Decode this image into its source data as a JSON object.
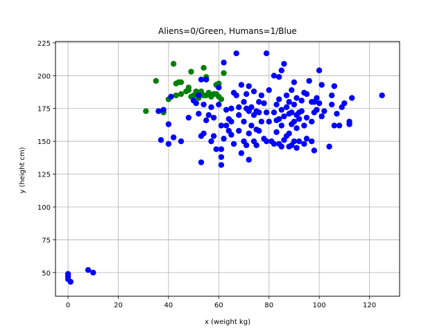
{
  "chart_data": {
    "type": "scatter",
    "title": "Aliens=0/Green, Humans=1/Blue",
    "xlabel": "x (weight kg)",
    "ylabel": "y (height cm)",
    "xlim": [
      -5,
      132
    ],
    "ylim": [
      32,
      226
    ],
    "x_ticks": [
      0,
      20,
      40,
      60,
      80,
      100,
      120
    ],
    "y_ticks": [
      50,
      75,
      100,
      125,
      150,
      175,
      200,
      225
    ],
    "grid": true,
    "legend": "none",
    "colors": {
      "Green": "#008000",
      "Blue": "#0000ff"
    },
    "series": [
      {
        "color": "#008000",
        "points": [
          [
            31,
            173
          ],
          [
            35,
            196
          ],
          [
            38,
            172
          ],
          [
            40,
            182
          ],
          [
            42,
            209
          ],
          [
            43,
            185
          ],
          [
            43,
            194
          ],
          [
            44,
            195
          ],
          [
            45,
            186
          ],
          [
            45,
            195
          ],
          [
            47,
            188
          ],
          [
            48,
            189
          ],
          [
            48,
            191
          ],
          [
            49,
            184
          ],
          [
            49,
            203
          ],
          [
            50,
            185
          ],
          [
            51,
            186
          ],
          [
            51,
            188
          ],
          [
            52,
            183
          ],
          [
            53,
            186
          ],
          [
            53,
            188
          ],
          [
            54,
            185
          ],
          [
            54,
            206
          ],
          [
            55,
            185
          ],
          [
            55,
            199
          ],
          [
            56,
            187
          ],
          [
            57,
            184
          ],
          [
            58,
            186
          ],
          [
            59,
            186
          ],
          [
            59,
            193
          ],
          [
            60,
            194
          ],
          [
            60,
            184
          ],
          [
            61,
            182
          ],
          [
            62,
            202
          ]
        ]
      },
      {
        "color": "#0000ff",
        "points": [
          [
            0,
            49
          ],
          [
            0,
            47
          ],
          [
            0,
            45
          ],
          [
            1,
            43
          ],
          [
            8,
            52
          ],
          [
            10,
            50
          ],
          [
            36,
            173
          ],
          [
            37,
            151
          ],
          [
            38,
            174
          ],
          [
            40,
            163
          ],
          [
            40,
            148
          ],
          [
            41,
            184
          ],
          [
            42,
            153
          ],
          [
            45,
            150
          ],
          [
            48,
            168
          ],
          [
            50,
            181
          ],
          [
            51,
            179
          ],
          [
            52,
            171
          ],
          [
            52,
            185
          ],
          [
            53,
            134
          ],
          [
            53,
            154
          ],
          [
            53,
            197
          ],
          [
            54,
            156
          ],
          [
            54,
            178
          ],
          [
            55,
            166
          ],
          [
            55,
            197
          ],
          [
            56,
            170
          ],
          [
            57,
            150
          ],
          [
            57,
            176
          ],
          [
            58,
            154
          ],
          [
            58,
            168
          ],
          [
            59,
            144
          ],
          [
            60,
            178
          ],
          [
            60,
            191
          ],
          [
            61,
            138
          ],
          [
            61,
            132
          ],
          [
            61,
            144
          ],
          [
            61,
            162
          ],
          [
            62,
            152
          ],
          [
            62,
            210
          ],
          [
            63,
            162
          ],
          [
            63,
            174
          ],
          [
            64,
            158
          ],
          [
            64,
            167
          ],
          [
            65,
            155
          ],
          [
            65,
            175
          ],
          [
            65,
            165
          ],
          [
            66,
            148
          ],
          [
            66,
            187
          ],
          [
            67,
            217
          ],
          [
            67,
            185
          ],
          [
            68,
            158
          ],
          [
            68,
            170
          ],
          [
            68,
            176
          ],
          [
            69,
            141
          ],
          [
            69,
            193
          ],
          [
            70,
            150
          ],
          [
            70,
            165
          ],
          [
            70,
            180
          ],
          [
            71,
            147
          ],
          [
            71,
            175
          ],
          [
            71,
            186
          ],
          [
            72,
            136
          ],
          [
            72,
            156
          ],
          [
            72,
            173
          ],
          [
            72,
            192
          ],
          [
            73,
            162
          ],
          [
            73,
            176
          ],
          [
            74,
            150
          ],
          [
            74,
            170
          ],
          [
            74,
            188
          ],
          [
            75,
            147
          ],
          [
            75,
            159
          ],
          [
            75,
            173
          ],
          [
            76,
            158
          ],
          [
            76,
            172
          ],
          [
            76,
            180
          ],
          [
            77,
            165
          ],
          [
            77,
            185
          ],
          [
            78,
            152
          ],
          [
            78,
            179
          ],
          [
            79,
            217
          ],
          [
            79,
            150
          ],
          [
            79,
            172
          ],
          [
            80,
            165
          ],
          [
            80,
            189
          ],
          [
            81,
            150
          ],
          [
            82,
            148
          ],
          [
            82,
            172
          ],
          [
            82,
            200
          ],
          [
            83,
            157
          ],
          [
            83,
            166
          ],
          [
            83,
            178
          ],
          [
            84,
            148
          ],
          [
            84,
            167
          ],
          [
            84,
            182
          ],
          [
            84,
            199
          ],
          [
            85,
            146
          ],
          [
            85,
            162
          ],
          [
            85,
            174
          ],
          [
            85,
            204
          ],
          [
            86,
            151
          ],
          [
            86,
            169
          ],
          [
            86,
            209
          ],
          [
            87,
            154
          ],
          [
            87,
            176
          ],
          [
            87,
            185
          ],
          [
            88,
            146
          ],
          [
            88,
            156
          ],
          [
            88,
            171
          ],
          [
            88,
            180
          ],
          [
            89,
            147
          ],
          [
            89,
            163
          ],
          [
            89,
            172
          ],
          [
            89,
            189
          ],
          [
            90,
            150
          ],
          [
            90,
            165
          ],
          [
            90,
            178
          ],
          [
            90,
            195
          ],
          [
            91,
            145
          ],
          [
            91,
            160
          ],
          [
            91,
            170
          ],
          [
            91,
            183
          ],
          [
            92,
            150
          ],
          [
            92,
            167
          ],
          [
            92,
            172
          ],
          [
            93,
            173
          ],
          [
            93,
            181
          ],
          [
            94,
            148
          ],
          [
            94,
            162
          ],
          [
            94,
            187
          ],
          [
            95,
            152
          ],
          [
            95,
            168
          ],
          [
            95,
            186
          ],
          [
            96,
            196
          ],
          [
            97,
            150
          ],
          [
            97,
            165
          ],
          [
            97,
            180
          ],
          [
            98,
            180
          ],
          [
            98,
            143
          ],
          [
            98,
            172
          ],
          [
            99,
            183
          ],
          [
            99,
            174
          ],
          [
            100,
            204
          ],
          [
            100,
            179
          ],
          [
            101,
            169
          ],
          [
            101,
            193
          ],
          [
            102,
            173
          ],
          [
            104,
            146
          ],
          [
            105,
            178
          ],
          [
            105,
            185
          ],
          [
            106,
            162
          ],
          [
            106,
            192
          ],
          [
            107,
            171
          ],
          [
            108,
            162
          ],
          [
            109,
            176
          ],
          [
            110,
            179
          ],
          [
            112,
            165
          ],
          [
            112,
            163
          ],
          [
            113,
            183
          ],
          [
            125,
            185
          ]
        ]
      }
    ]
  }
}
